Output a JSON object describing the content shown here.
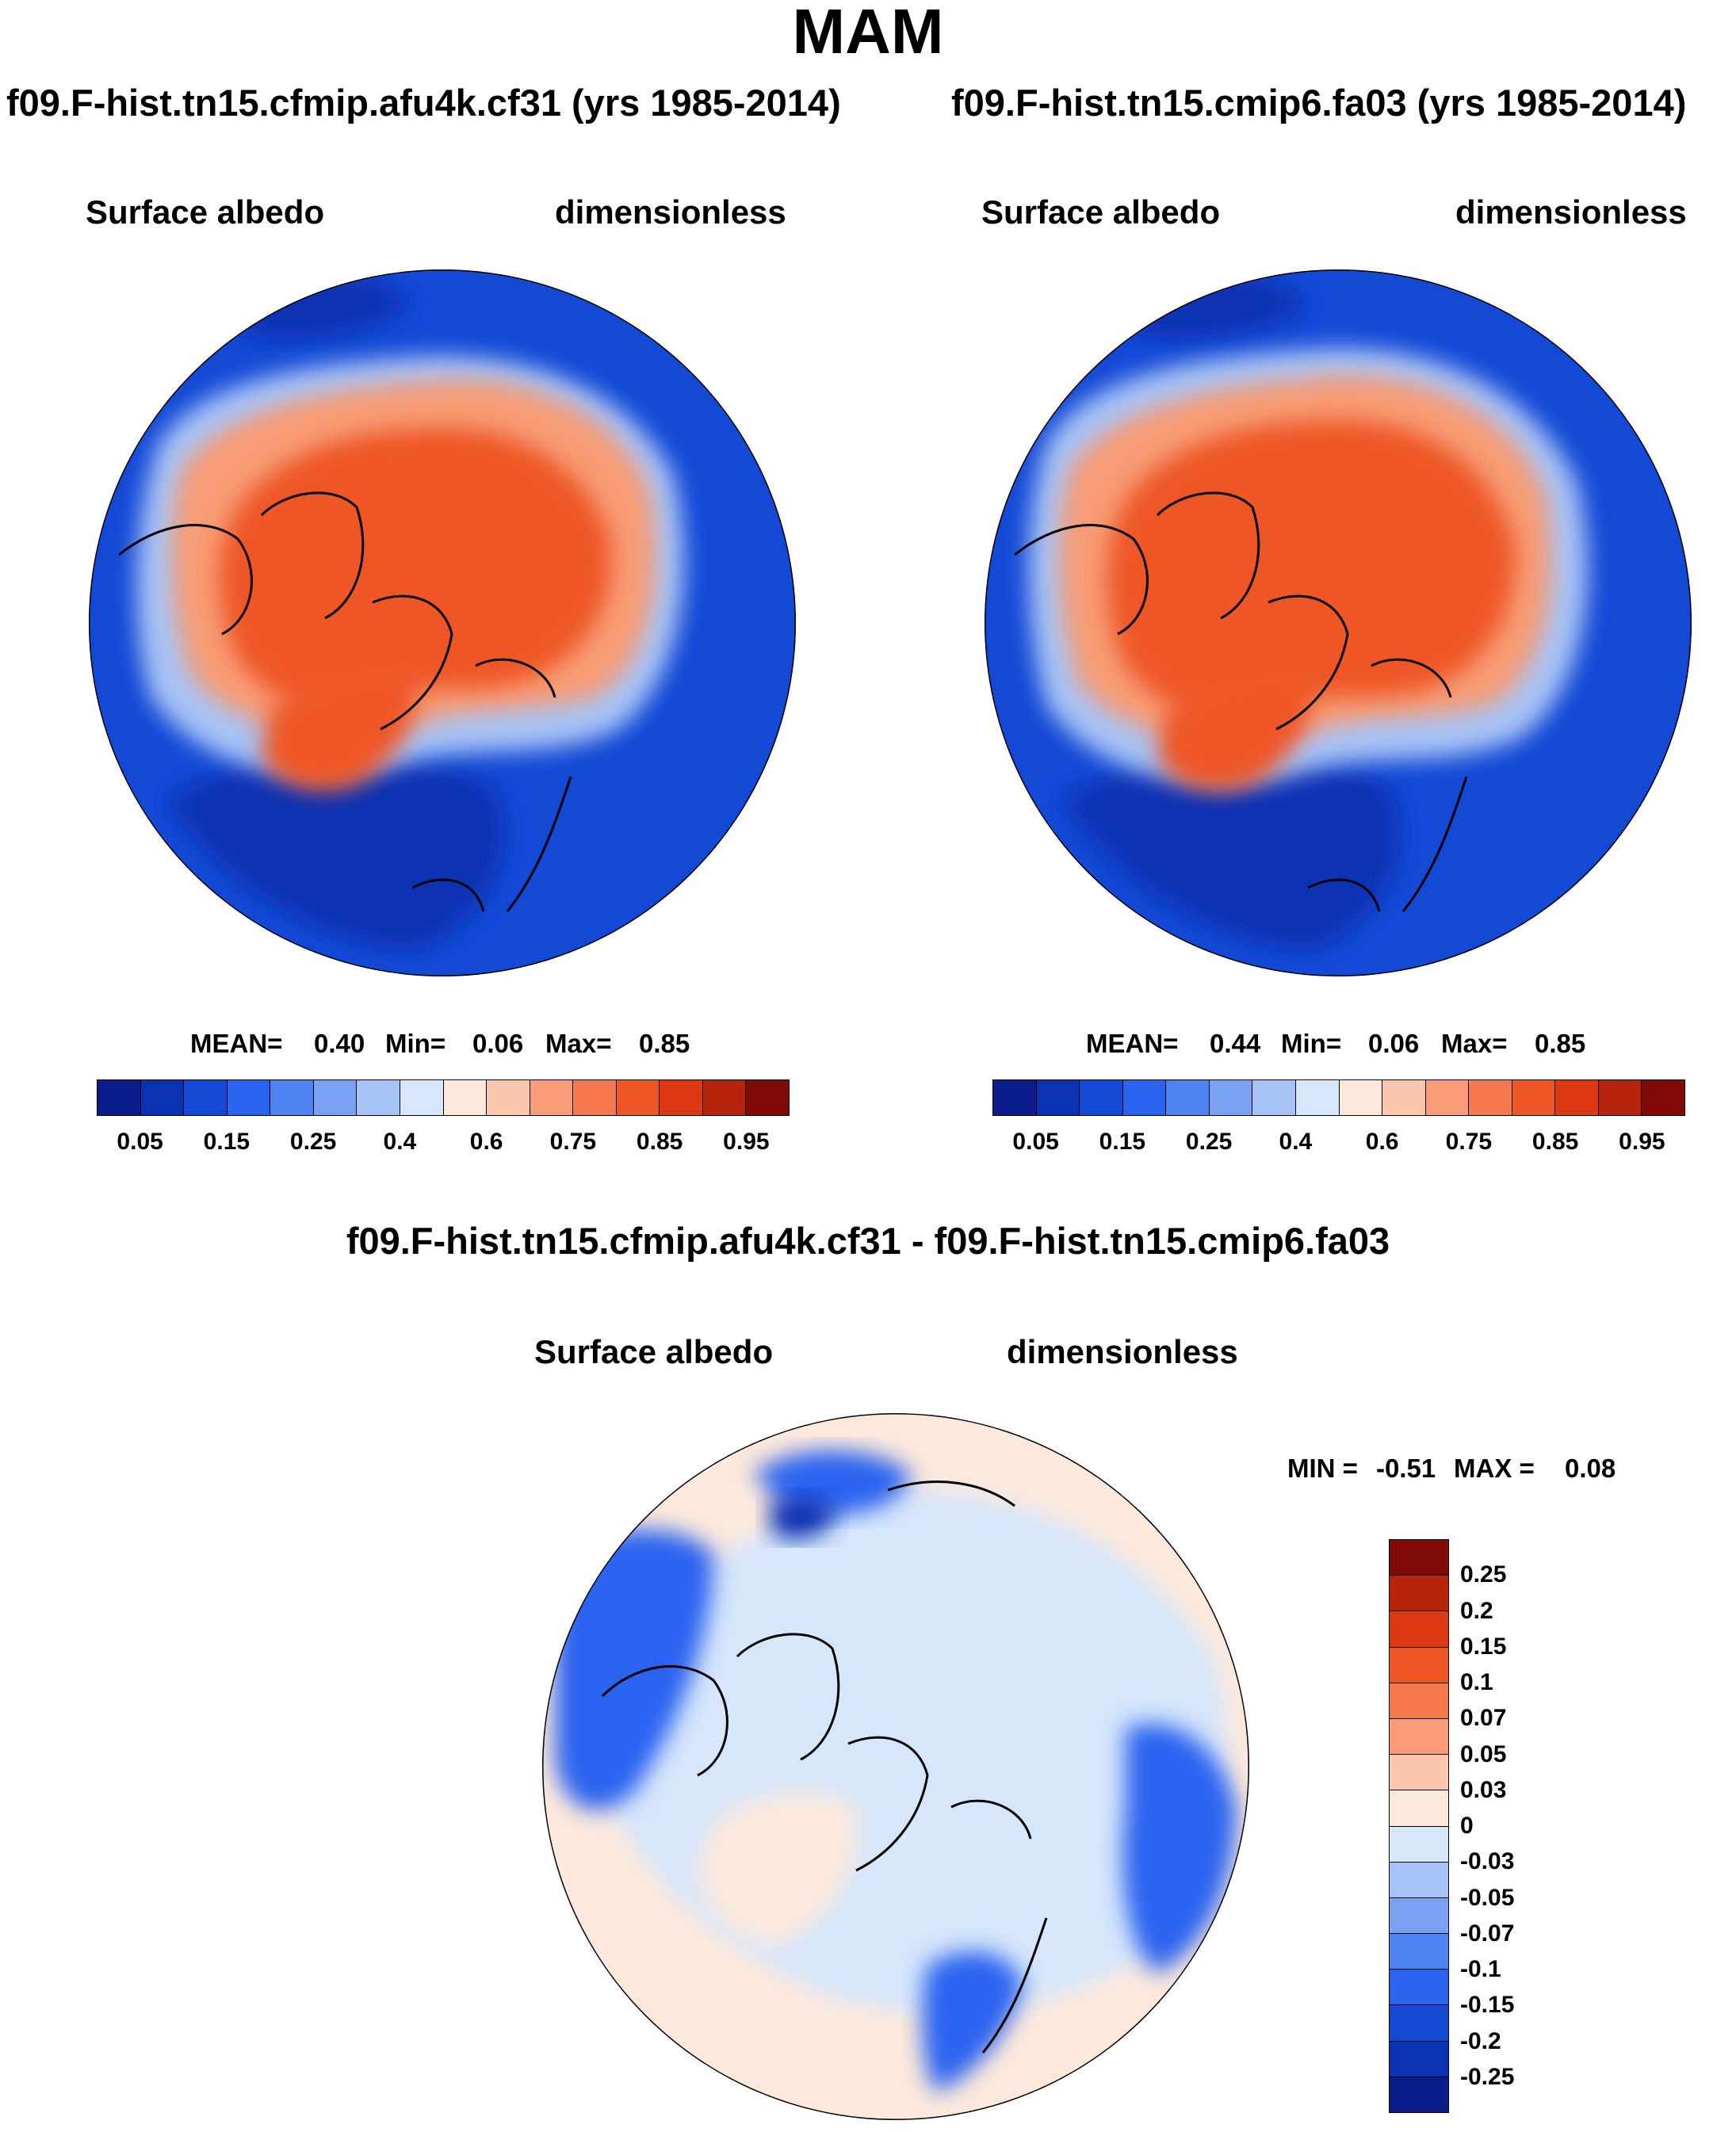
{
  "page": {
    "season": "MAM"
  },
  "panels": {
    "left": {
      "run_title": "f09.F-hist.tn15.cfmip.afu4k.cf31 (yrs 1985-2014)",
      "variable": "Surface albedo",
      "units": "dimensionless",
      "stats": {
        "mean_label": "MEAN=",
        "mean": "0.40",
        "min_label": "Min=",
        "min": "0.06",
        "max_label": "Max=",
        "max": "0.85"
      }
    },
    "right": {
      "run_title": "f09.F-hist.tn15.cmip6.fa03 (yrs 1985-2014)",
      "variable": "Surface albedo",
      "units": "dimensionless",
      "stats": {
        "mean_label": "MEAN=",
        "mean": "0.44",
        "min_label": "Min=",
        "min": "0.06",
        "max_label": "Max=",
        "max": "0.85"
      }
    },
    "diff": {
      "title": "f09.F-hist.tn15.cfmip.afu4k.cf31 - f09.F-hist.tn15.cmip6.fa03",
      "variable": "Surface albedo",
      "units": "dimensionless",
      "stats": {
        "min_label": "MIN =",
        "min": "-0.51",
        "max_label": "MAX =",
        "max": "0.08"
      }
    }
  },
  "colorbars": {
    "absolute": {
      "colors": [
        "#0a1c8c",
        "#0c32b4",
        "#1449d6",
        "#2a63f0",
        "#4d82f2",
        "#7ba2f2",
        "#a7c3f5",
        "#d6e6fb",
        "#fde9dc",
        "#fbc7ad",
        "#f79c76",
        "#f5784e",
        "#ee5626",
        "#dc3812",
        "#b7240c",
        "#820a06"
      ],
      "tick_labels": [
        "0.05",
        "0.15",
        "0.25",
        "0.4",
        "0.6",
        "0.75",
        "0.85",
        "0.95"
      ]
    },
    "difference": {
      "colors": [
        "#820a06",
        "#b7240c",
        "#dc3812",
        "#ee5626",
        "#f5784e",
        "#f79c76",
        "#fbc7ad",
        "#fde9dc",
        "#d6e6fb",
        "#a7c3f5",
        "#7ba2f2",
        "#4d82f2",
        "#2a63f0",
        "#1449d6",
        "#0c32b4",
        "#0a1c8c"
      ],
      "tick_labels": [
        "0.25",
        "0.2",
        "0.15",
        "0.1",
        "0.07",
        "0.05",
        "0.03",
        "0",
        "-0.03",
        "-0.05",
        "-0.07",
        "-0.1",
        "-0.15",
        "-0.2",
        "-0.25"
      ]
    }
  },
  "map_colors": {
    "ocean_low": "#1449d6",
    "ocean_deep": "#0c32b4",
    "ice_high": "#ee5626",
    "ice_edge": "#f79c76",
    "transition": "#a7c3f5",
    "diff_pos": "#fde9dc",
    "diff_zero": "#d6e6fb",
    "diff_neg": "#2a63f0",
    "diff_neg_strong": "#0c32b4"
  }
}
